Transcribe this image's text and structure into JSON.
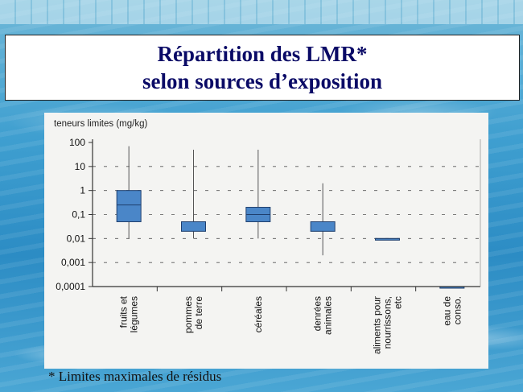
{
  "slide": {
    "title_line1": "Répartition des LMR*",
    "title_line2": "selon sources d’exposition",
    "footnote": "* Limites maximales de résidus"
  },
  "colors": {
    "box_fill": "#4a86c8",
    "box_stroke": "#1f3f6e",
    "title_text": "#0a0a66"
  },
  "chart_data": {
    "type": "box",
    "title": "",
    "ylabel": "teneurs limites (mg/kg)",
    "y_scale": "log",
    "ylim": [
      0.0001,
      100
    ],
    "y_ticks": [
      "100",
      "10",
      "1",
      "0,1",
      "0,01",
      "0,001",
      "0,0001"
    ],
    "y_tick_values": [
      100,
      10,
      1,
      0.1,
      0.01,
      0.001,
      0.0001
    ],
    "grid": "dashed-horizontal",
    "categories": [
      [
        "fruits et",
        "légumes"
      ],
      [
        "pommes",
        "de terre"
      ],
      [
        "céréales"
      ],
      [
        "denrées",
        "animales"
      ],
      [
        "aliments pour",
        "nourrissons,",
        "etc"
      ],
      [
        "eau de",
        "conso."
      ]
    ],
    "boxes": [
      {
        "min": 0.01,
        "q1": 0.05,
        "median": 0.25,
        "q3": 1,
        "max": 70
      },
      {
        "min": 0.01,
        "q1": 0.02,
        "median": 0.05,
        "q3": 0.05,
        "max": 50
      },
      {
        "min": 0.01,
        "q1": 0.05,
        "median": 0.1,
        "q3": 0.2,
        "max": 50
      },
      {
        "min": 0.002,
        "q1": 0.02,
        "median": 0.05,
        "q3": 0.05,
        "max": 2
      },
      {
        "min": 0.01,
        "q1": 0.01,
        "median": 0.01,
        "q3": 0.01,
        "max": 0.01
      },
      {
        "min": 0.0001,
        "q1": 0.0001,
        "median": 0.0001,
        "q3": 0.0001,
        "max": 0.0001
      }
    ]
  }
}
